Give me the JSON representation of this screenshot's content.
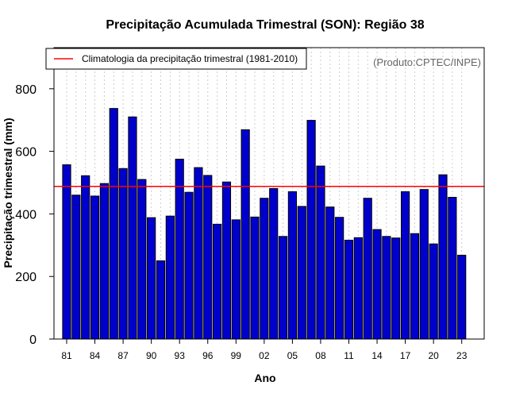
{
  "chart_data": {
    "type": "bar",
    "title": "Precipitação Acumulada Trimestral (SON): Região 38",
    "xlabel": "Ano",
    "ylabel": "Precipitação trimestral (mm)",
    "source": "(Produto:CPTEC/INPE)",
    "legend": {
      "label": "Climatologia da precipitação trimestral (1981-2010)",
      "position": "top-left"
    },
    "climatology": 488,
    "ylim": [
      0,
      900
    ],
    "yticks": [
      0,
      200,
      400,
      600,
      800
    ],
    "xtick_labels": [
      "81",
      "84",
      "87",
      "90",
      "93",
      "96",
      "99",
      "02",
      "05",
      "08",
      "11",
      "14",
      "17",
      "20",
      "23"
    ],
    "categories": [
      "1981",
      "1982",
      "1983",
      "1984",
      "1985",
      "1986",
      "1987",
      "1988",
      "1989",
      "1990",
      "1991",
      "1992",
      "1993",
      "1994",
      "1995",
      "1996",
      "1997",
      "1998",
      "1999",
      "2000",
      "2001",
      "2002",
      "2003",
      "2004",
      "2005",
      "2006",
      "2007",
      "2008",
      "2009",
      "2010",
      "2011",
      "2012",
      "2013",
      "2014",
      "2015",
      "2016",
      "2017",
      "2018",
      "2019",
      "2020",
      "2021",
      "2022",
      "2023"
    ],
    "values": [
      557,
      460,
      522,
      457,
      497,
      737,
      545,
      710,
      510,
      388,
      250,
      393,
      575,
      469,
      548,
      523,
      367,
      502,
      381,
      669,
      390,
      450,
      481,
      328,
      471,
      424,
      699,
      553,
      422,
      389,
      316,
      324,
      450,
      350,
      328,
      323,
      471,
      337,
      478,
      304,
      525,
      453,
      268
    ],
    "colors": {
      "bar": "#0000cc",
      "bar_edge": "#000000",
      "climatology_line": "#ff0000",
      "grid": "#cccccc",
      "source": "#666666"
    },
    "grid": true
  }
}
